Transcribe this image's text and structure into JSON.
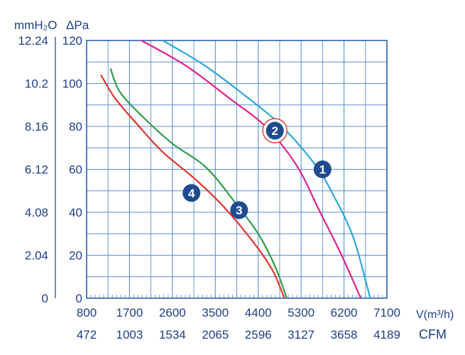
{
  "chart_data": {
    "type": "line",
    "title": "",
    "left_axis_unit": "mmH₂O",
    "right_axis_unit": "ΔPa",
    "left_ticks": [
      "12.24",
      "10.2",
      "8.16",
      "6.12",
      "4.08",
      "2.04",
      "0"
    ],
    "y_ticks": [
      "120",
      "100",
      "80",
      "60",
      "40",
      "20",
      "0"
    ],
    "x_ticks_primary": [
      "800",
      "1700",
      "2600",
      "3500",
      "4400",
      "5300",
      "6200",
      "7100"
    ],
    "x_unit_primary": "V(m³/h)",
    "x_ticks_secondary": [
      "472",
      "1003",
      "1534",
      "2065",
      "2596",
      "3127",
      "3658",
      "4189"
    ],
    "x_unit_secondary": "CFM",
    "xlim": [
      800,
      7100
    ],
    "ylim": [
      0,
      120
    ],
    "grid": true,
    "legend": "numbered circular markers on curves",
    "series": [
      {
        "name": "1",
        "color": "#2aa7dd",
        "points": [
          [
            2400,
            120
          ],
          [
            3300,
            108
          ],
          [
            4200,
            93
          ],
          [
            4900,
            80
          ],
          [
            5600,
            62
          ],
          [
            6000,
            47
          ],
          [
            6400,
            28
          ],
          [
            6750,
            0
          ]
        ],
        "marker_at": [
          5750,
          60
        ]
      },
      {
        "name": "2",
        "color": "#e0238a",
        "points": [
          [
            1950,
            120
          ],
          [
            2900,
            108
          ],
          [
            3800,
            93
          ],
          [
            4550,
            80
          ],
          [
            5200,
            62
          ],
          [
            5700,
            40
          ],
          [
            6150,
            20
          ],
          [
            6550,
            0
          ]
        ],
        "marker_at": [
          4750,
          78
        ],
        "highlighted": true
      },
      {
        "name": "3",
        "color": "#2c9e4b",
        "points": [
          [
            1300,
            107
          ],
          [
            1500,
            96
          ],
          [
            2000,
            84
          ],
          [
            2600,
            72
          ],
          [
            3300,
            61
          ],
          [
            3900,
            45
          ],
          [
            4400,
            30
          ],
          [
            4750,
            15
          ],
          [
            5000,
            0
          ]
        ],
        "marker_at": [
          4000,
          41
        ]
      },
      {
        "name": "4",
        "color": "#e2342b",
        "points": [
          [
            1100,
            104
          ],
          [
            1400,
            93
          ],
          [
            1900,
            80
          ],
          [
            2400,
            68
          ],
          [
            3100,
            55
          ],
          [
            3700,
            42
          ],
          [
            4300,
            26
          ],
          [
            4700,
            13
          ],
          [
            4950,
            0
          ]
        ],
        "marker_at": [
          3000,
          49
        ]
      }
    ]
  }
}
